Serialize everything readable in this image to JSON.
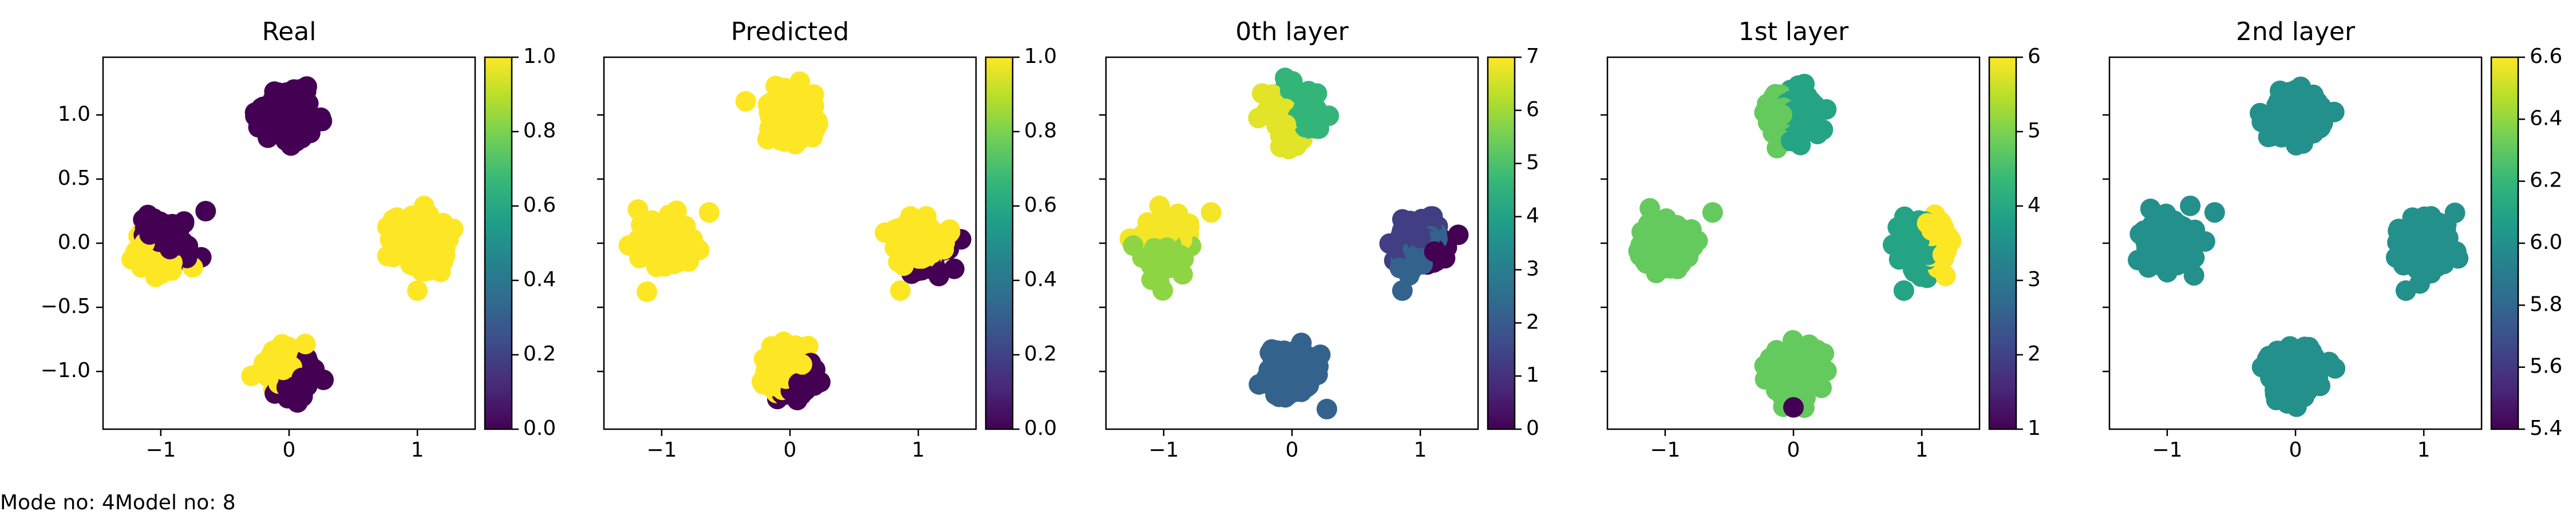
{
  "figure": {
    "footer_mode": "Mode no: 4",
    "footer_model": "Model no: 8"
  },
  "colors": {
    "viridis": [
      "#440154",
      "#482878",
      "#3e4989",
      "#31688e",
      "#26828e",
      "#1f9e89",
      "#35b779",
      "#6ece58",
      "#b5de2b",
      "#fde725"
    ]
  },
  "chart_data": [
    {
      "type": "scatter",
      "title": "Real",
      "xlabel": "",
      "ylabel": "",
      "xlim": [
        -1.45,
        1.45
      ],
      "ylim": [
        -1.45,
        1.45
      ],
      "xticks": [
        -1,
        0,
        1
      ],
      "yticks": [
        -1.0,
        -0.5,
        0.0,
        0.5,
        1.0
      ],
      "ytick_labels": [
        "−1.0",
        "−0.5",
        "0.0",
        "0.5",
        "1.0"
      ],
      "xtick_labels": [
        "−1",
        "0",
        "1"
      ],
      "colorbar": {
        "min": 0.0,
        "max": 1.0,
        "ticks": [
          0.0,
          0.2,
          0.4,
          0.6,
          0.8,
          1.0
        ],
        "tick_labels": [
          "0.0",
          "0.2",
          "0.4",
          "0.6",
          "0.8",
          "1.0"
        ]
      },
      "clusters": [
        {
          "center": [
            0.0,
            1.0
          ],
          "value": 0.0
        },
        {
          "center": [
            1.0,
            0.0
          ],
          "value": 1.0
        },
        {
          "center": [
            -1.0,
            0.0
          ],
          "value": 1.0,
          "split": {
            "nx": 0.55,
            "ny": 0.85,
            "off": -0.02,
            "value": 0.0
          }
        },
        {
          "center": [
            0.0,
            -1.0
          ],
          "value": 1.0,
          "split": {
            "nx": 1.0,
            "ny": -0.8,
            "off": 0.02,
            "value": 0.0
          }
        }
      ],
      "extra_points": [
        {
          "x": -0.65,
          "y": 0.25,
          "value": 0.0
        },
        {
          "x": 1.0,
          "y": -0.37,
          "value": 1.0
        }
      ]
    },
    {
      "type": "scatter",
      "title": "Predicted",
      "xlabel": "",
      "ylabel": "",
      "xlim": [
        -1.45,
        1.45
      ],
      "ylim": [
        -1.45,
        1.45
      ],
      "xticks": [
        -1,
        0,
        1
      ],
      "yticks": [
        -1.0,
        -0.5,
        0.0,
        0.5,
        1.0
      ],
      "xtick_labels": [
        "−1",
        "0",
        "1"
      ],
      "ytick_labels": [],
      "colorbar": {
        "min": 0.0,
        "max": 1.0,
        "ticks": [
          0.0,
          0.2,
          0.4,
          0.6,
          0.8,
          1.0
        ],
        "tick_labels": [
          "0.0",
          "0.2",
          "0.4",
          "0.6",
          "0.8",
          "1.0"
        ]
      },
      "clusters": [
        {
          "center": [
            0.0,
            1.0
          ],
          "value": 1.0
        },
        {
          "center": [
            1.0,
            0.0
          ],
          "value": 1.0,
          "split": {
            "nx": 0.6,
            "ny": -1.0,
            "off": 0.17,
            "value": 0.0
          }
        },
        {
          "center": [
            -1.0,
            0.0
          ],
          "value": 1.0
        },
        {
          "center": [
            0.0,
            -1.0
          ],
          "value": 1.0,
          "split": {
            "nx": 1.0,
            "ny": -0.8,
            "off": 0.06,
            "value": 0.0
          }
        }
      ],
      "extra_points": [
        {
          "x": -0.63,
          "y": 0.24,
          "value": 1.0
        },
        {
          "x": 0.86,
          "y": -0.37,
          "value": 1.0
        },
        {
          "x": 1.28,
          "y": -0.2,
          "value": 0.0
        }
      ]
    },
    {
      "type": "scatter",
      "title": "0th layer",
      "xlabel": "",
      "ylabel": "",
      "xlim": [
        -1.45,
        1.45
      ],
      "ylim": [
        -1.45,
        1.45
      ],
      "xticks": [
        -1,
        0,
        1
      ],
      "yticks": [
        -1.0,
        -0.5,
        0.0,
        0.5,
        1.0
      ],
      "xtick_labels": [
        "−1",
        "0",
        "1"
      ],
      "ytick_labels": [],
      "colorbar": {
        "min": 0,
        "max": 7,
        "ticks": [
          0,
          1,
          2,
          3,
          4,
          5,
          6,
          7
        ],
        "tick_labels": [
          "0",
          "1",
          "2",
          "3",
          "4",
          "5",
          "6",
          "7"
        ]
      },
      "clusters": [
        {
          "center": [
            0.0,
            1.0
          ],
          "value": 6.7,
          "split": {
            "nx": 1.0,
            "ny": 0.6,
            "off": 0.02,
            "value": 4.6
          }
        },
        {
          "center": [
            1.0,
            0.0
          ],
          "value": 1.3,
          "split": {
            "nx": 0.7,
            "ny": -1.0,
            "off": 0.0,
            "value": 2.2
          },
          "split2": {
            "nx": 1.0,
            "ny": -0.6,
            "off": 0.12,
            "value": 0.0
          }
        },
        {
          "center": [
            -1.0,
            0.0
          ],
          "value": 6.9,
          "split": {
            "nx": 0.0,
            "ny": -1.0,
            "off": 0.0,
            "value": 5.8
          }
        },
        {
          "center": [
            0.0,
            -1.0
          ],
          "value": 2.2
        }
      ],
      "extra_points": [
        {
          "x": -0.63,
          "y": 0.24,
          "value": 6.9
        },
        {
          "x": 0.86,
          "y": -0.37,
          "value": 2.2
        }
      ]
    },
    {
      "type": "scatter",
      "title": "1st layer",
      "xlabel": "",
      "ylabel": "",
      "xlim": [
        -1.45,
        1.45
      ],
      "ylim": [
        -1.45,
        1.45
      ],
      "xticks": [
        -1,
        0,
        1
      ],
      "yticks": [
        -1.0,
        -0.5,
        0.0,
        0.5,
        1.0
      ],
      "xtick_labels": [
        "−1",
        "0",
        "1"
      ],
      "ytick_labels": [],
      "colorbar": {
        "min": 1,
        "max": 6,
        "ticks": [
          1,
          2,
          3,
          4,
          5,
          6
        ],
        "tick_labels": [
          "1",
          "2",
          "3",
          "4",
          "5",
          "6"
        ]
      },
      "clusters": [
        {
          "center": [
            0.0,
            1.0
          ],
          "value": 3.9,
          "split": {
            "nx": -1.0,
            "ny": 0.0,
            "off": 0.05,
            "value": 4.8
          }
        },
        {
          "center": [
            1.0,
            0.0
          ],
          "value": 3.9,
          "split": {
            "nx": 1.0,
            "ny": 0.1,
            "off": 0.05,
            "value": 6.0
          }
        },
        {
          "center": [
            -1.0,
            0.0
          ],
          "value": 4.8
        },
        {
          "center": [
            0.0,
            -1.0
          ],
          "value": 4.8
        }
      ],
      "extra_points": [
        {
          "x": -0.63,
          "y": 0.24,
          "value": 4.8
        },
        {
          "x": 0.86,
          "y": -0.37,
          "value": 3.9
        },
        {
          "x": 0.0,
          "y": -1.28,
          "value": 1.0
        }
      ]
    },
    {
      "type": "scatter",
      "title": "2nd layer",
      "xlabel": "",
      "ylabel": "",
      "xlim": [
        -1.45,
        1.45
      ],
      "ylim": [
        -1.45,
        1.45
      ],
      "xticks": [
        -1,
        0,
        1
      ],
      "yticks": [
        -1.0,
        -0.5,
        0.0,
        0.5,
        1.0
      ],
      "xtick_labels": [
        "−1",
        "0",
        "1"
      ],
      "ytick_labels": [],
      "colorbar": {
        "min": 5.4,
        "max": 6.6,
        "ticks": [
          5.4,
          5.6,
          5.8,
          6.0,
          6.2,
          6.4,
          6.6
        ],
        "tick_labels": [
          "5.4",
          "5.6",
          "5.8",
          "6.0",
          "6.2",
          "6.4",
          "6.6"
        ]
      },
      "clusters": [
        {
          "center": [
            0.0,
            1.0
          ],
          "value": 6.0
        },
        {
          "center": [
            1.0,
            0.0
          ],
          "value": 6.0
        },
        {
          "center": [
            -1.0,
            0.0
          ],
          "value": 6.0
        },
        {
          "center": [
            0.0,
            -1.0
          ],
          "value": 6.0
        }
      ],
      "extra_points": [
        {
          "x": -0.63,
          "y": 0.24,
          "value": 6.0
        },
        {
          "x": 0.86,
          "y": -0.37,
          "value": 6.0
        }
      ]
    }
  ]
}
